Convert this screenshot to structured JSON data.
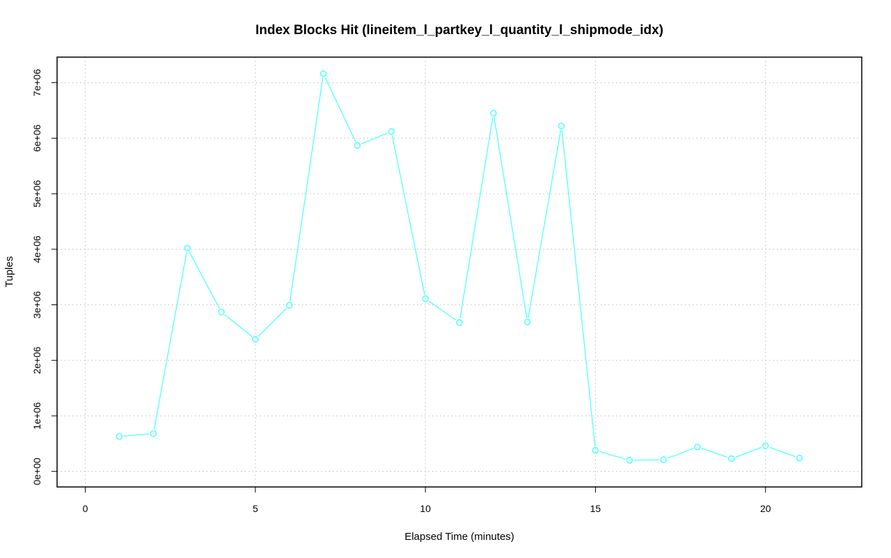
{
  "chart_data": {
    "type": "line",
    "title": "Index Blocks Hit (lineitem_l_partkey_l_quantity_l_shipmode_idx)",
    "xlabel": "Elapsed Time (minutes)",
    "ylabel": "Tuples",
    "xlim": [
      -0.83,
      22.83
    ],
    "ylim": [
      -280000,
      7460000
    ],
    "x_ticks": [
      0,
      5,
      10,
      15,
      20
    ],
    "x_tick_labels": [
      "0",
      "5",
      "10",
      "15",
      "20"
    ],
    "y_ticks": [
      0,
      1000000,
      2000000,
      3000000,
      4000000,
      5000000,
      6000000,
      7000000
    ],
    "y_tick_labels": [
      "0e+00",
      "1e+06",
      "2e+06",
      "3e+06",
      "4e+06",
      "5e+06",
      "6e+06",
      "7e+06"
    ],
    "grid": true,
    "series": [
      {
        "color": "#66ffff",
        "x": [
          1,
          2,
          3,
          4,
          5,
          6,
          7,
          8,
          9,
          10,
          11,
          12,
          13,
          14,
          15,
          16,
          17,
          18,
          19,
          20,
          21
        ],
        "values": [
          630000,
          680000,
          4020000,
          2870000,
          2380000,
          2990000,
          7160000,
          5870000,
          6120000,
          3110000,
          2680000,
          6450000,
          2690000,
          6220000,
          380000,
          200000,
          210000,
          440000,
          230000,
          460000,
          240000
        ]
      }
    ]
  }
}
